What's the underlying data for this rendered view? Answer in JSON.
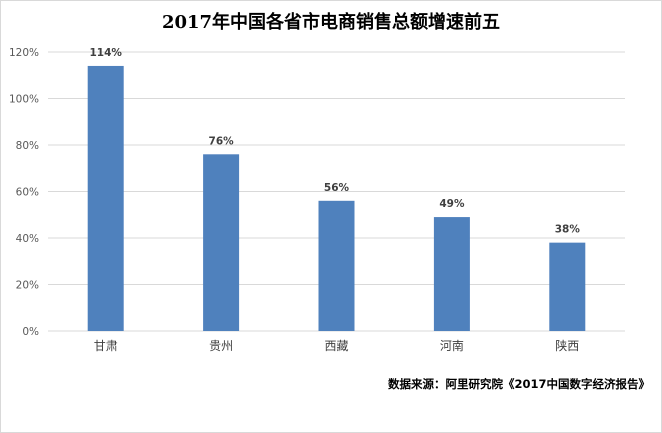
{
  "chart_data": {
    "type": "bar",
    "title": "2017年中国各省市电商销售总额增速前五",
    "categories": [
      "甘肃",
      "贵州",
      "西藏",
      "河南",
      "陕西"
    ],
    "values": [
      114,
      76,
      56,
      49,
      38
    ],
    "data_labels": [
      "114%",
      "76%",
      "56%",
      "49%",
      "38%"
    ],
    "yticks": [
      "0%",
      "20%",
      "40%",
      "60%",
      "80%",
      "100%",
      "120%"
    ],
    "ylim": [
      0,
      120
    ],
    "ystep": 20,
    "grid": true,
    "xlabel": "",
    "ylabel": "",
    "bar_color": "#4f81bd",
    "grid_color": "#d9d9d9"
  },
  "source_text": "数据来源：阿里研究院《2017中国数字经济报告》"
}
